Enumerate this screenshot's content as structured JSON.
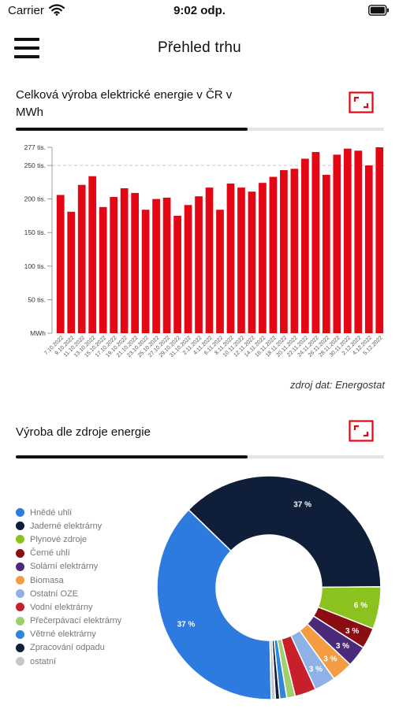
{
  "status_bar": {
    "carrier": "Carrier",
    "time": "9:02 odp."
  },
  "header": {
    "title": "Přehled trhu"
  },
  "production_section": {
    "title_line1": "Celková výroba elektrické energie v ČR v",
    "title_line2": "MWh",
    "tab_progress": 0.63,
    "source": "zdroj dat: Energostat"
  },
  "sources_section": {
    "title": "Výroba dle zdroje energie",
    "tab_progress": 0.63
  },
  "chart_data": [
    {
      "type": "bar",
      "title": "Celková výroba elektrické energie v ČR v MWh",
      "categories": [
        "7.10.2022",
        "9.10.2022",
        "11.10.2022",
        "13.10.2022",
        "15.10.2022",
        "17.10.2022",
        "19.10.2022",
        "21.10.2022",
        "23.10.2022",
        "25.10.2022",
        "27.10.2022",
        "29.10.2022",
        "31.10.2022",
        "2.11.2022",
        "4.11.2022",
        "6.11.2022",
        "8.11.2022",
        "10.11.2022",
        "12.11.2022",
        "14.11.2022",
        "16.11.2022",
        "18.11.2022",
        "20.11.2022",
        "22.11.2022",
        "24.11.2022",
        "26.11.2022",
        "28.11.2022",
        "30.11.2022",
        "2.12.2022",
        "4.12.2022",
        "5.12.2022"
      ],
      "values": [
        206,
        181,
        221,
        234,
        188,
        203,
        216,
        209,
        184,
        200,
        202,
        175,
        191,
        204,
        217,
        184,
        223,
        217,
        211,
        224,
        233,
        243,
        245,
        260,
        270,
        236,
        266,
        275,
        272,
        250,
        277
      ],
      "ytick_values": [
        0,
        50,
        100,
        150,
        200,
        250,
        277
      ],
      "ytick_labels": [
        "MWh",
        "50 tis.",
        "100 tis.",
        "150 tis.",
        "200 tis.",
        "250 tis.",
        "277 tis."
      ],
      "ylim": [
        0,
        277
      ],
      "bar_color": "#e40613",
      "grid": "dashed at 250 tis."
    },
    {
      "type": "pie",
      "title": "Výroba dle zdroje energie",
      "donut": true,
      "legend_position": "left",
      "slices": [
        {
          "label": "Hnědé uhlí",
          "value": 37,
          "display": "37 %",
          "color": "#2e7be0"
        },
        {
          "label": "Jaderné elektrárny",
          "value": 37,
          "display": "37 %",
          "color": "#0f1f3a"
        },
        {
          "label": "Plynové zdroje",
          "value": 6,
          "display": "6 %",
          "color": "#8cc21f"
        },
        {
          "label": "Černé uhlí",
          "value": 3,
          "display": "3 %",
          "color": "#8a0d12"
        },
        {
          "label": "Solární elektrárny",
          "value": 3,
          "display": "3 %",
          "color": "#4c2a7a"
        },
        {
          "label": "Biomasa",
          "value": 3,
          "display": "3 %",
          "color": "#f39c42"
        },
        {
          "label": "Ostatní OZE",
          "value": 3,
          "display": "3 %",
          "color": "#8fb2e6"
        },
        {
          "label": "Vodní elektrárny",
          "value": 3,
          "display": "",
          "color": "#c8202a"
        },
        {
          "label": "Přečerpávací elektrárny",
          "value": 1.2,
          "display": "",
          "color": "#9fcf6e"
        },
        {
          "label": "Větrné elektrárny",
          "value": 1,
          "display": "",
          "color": "#2f86d8"
        },
        {
          "label": "Zpracování odpadu",
          "value": 0.6,
          "display": "",
          "color": "#0f1f3a"
        },
        {
          "label": "ostatní",
          "value": 0.6,
          "display": "",
          "color": "#c7c7c7"
        }
      ]
    }
  ]
}
